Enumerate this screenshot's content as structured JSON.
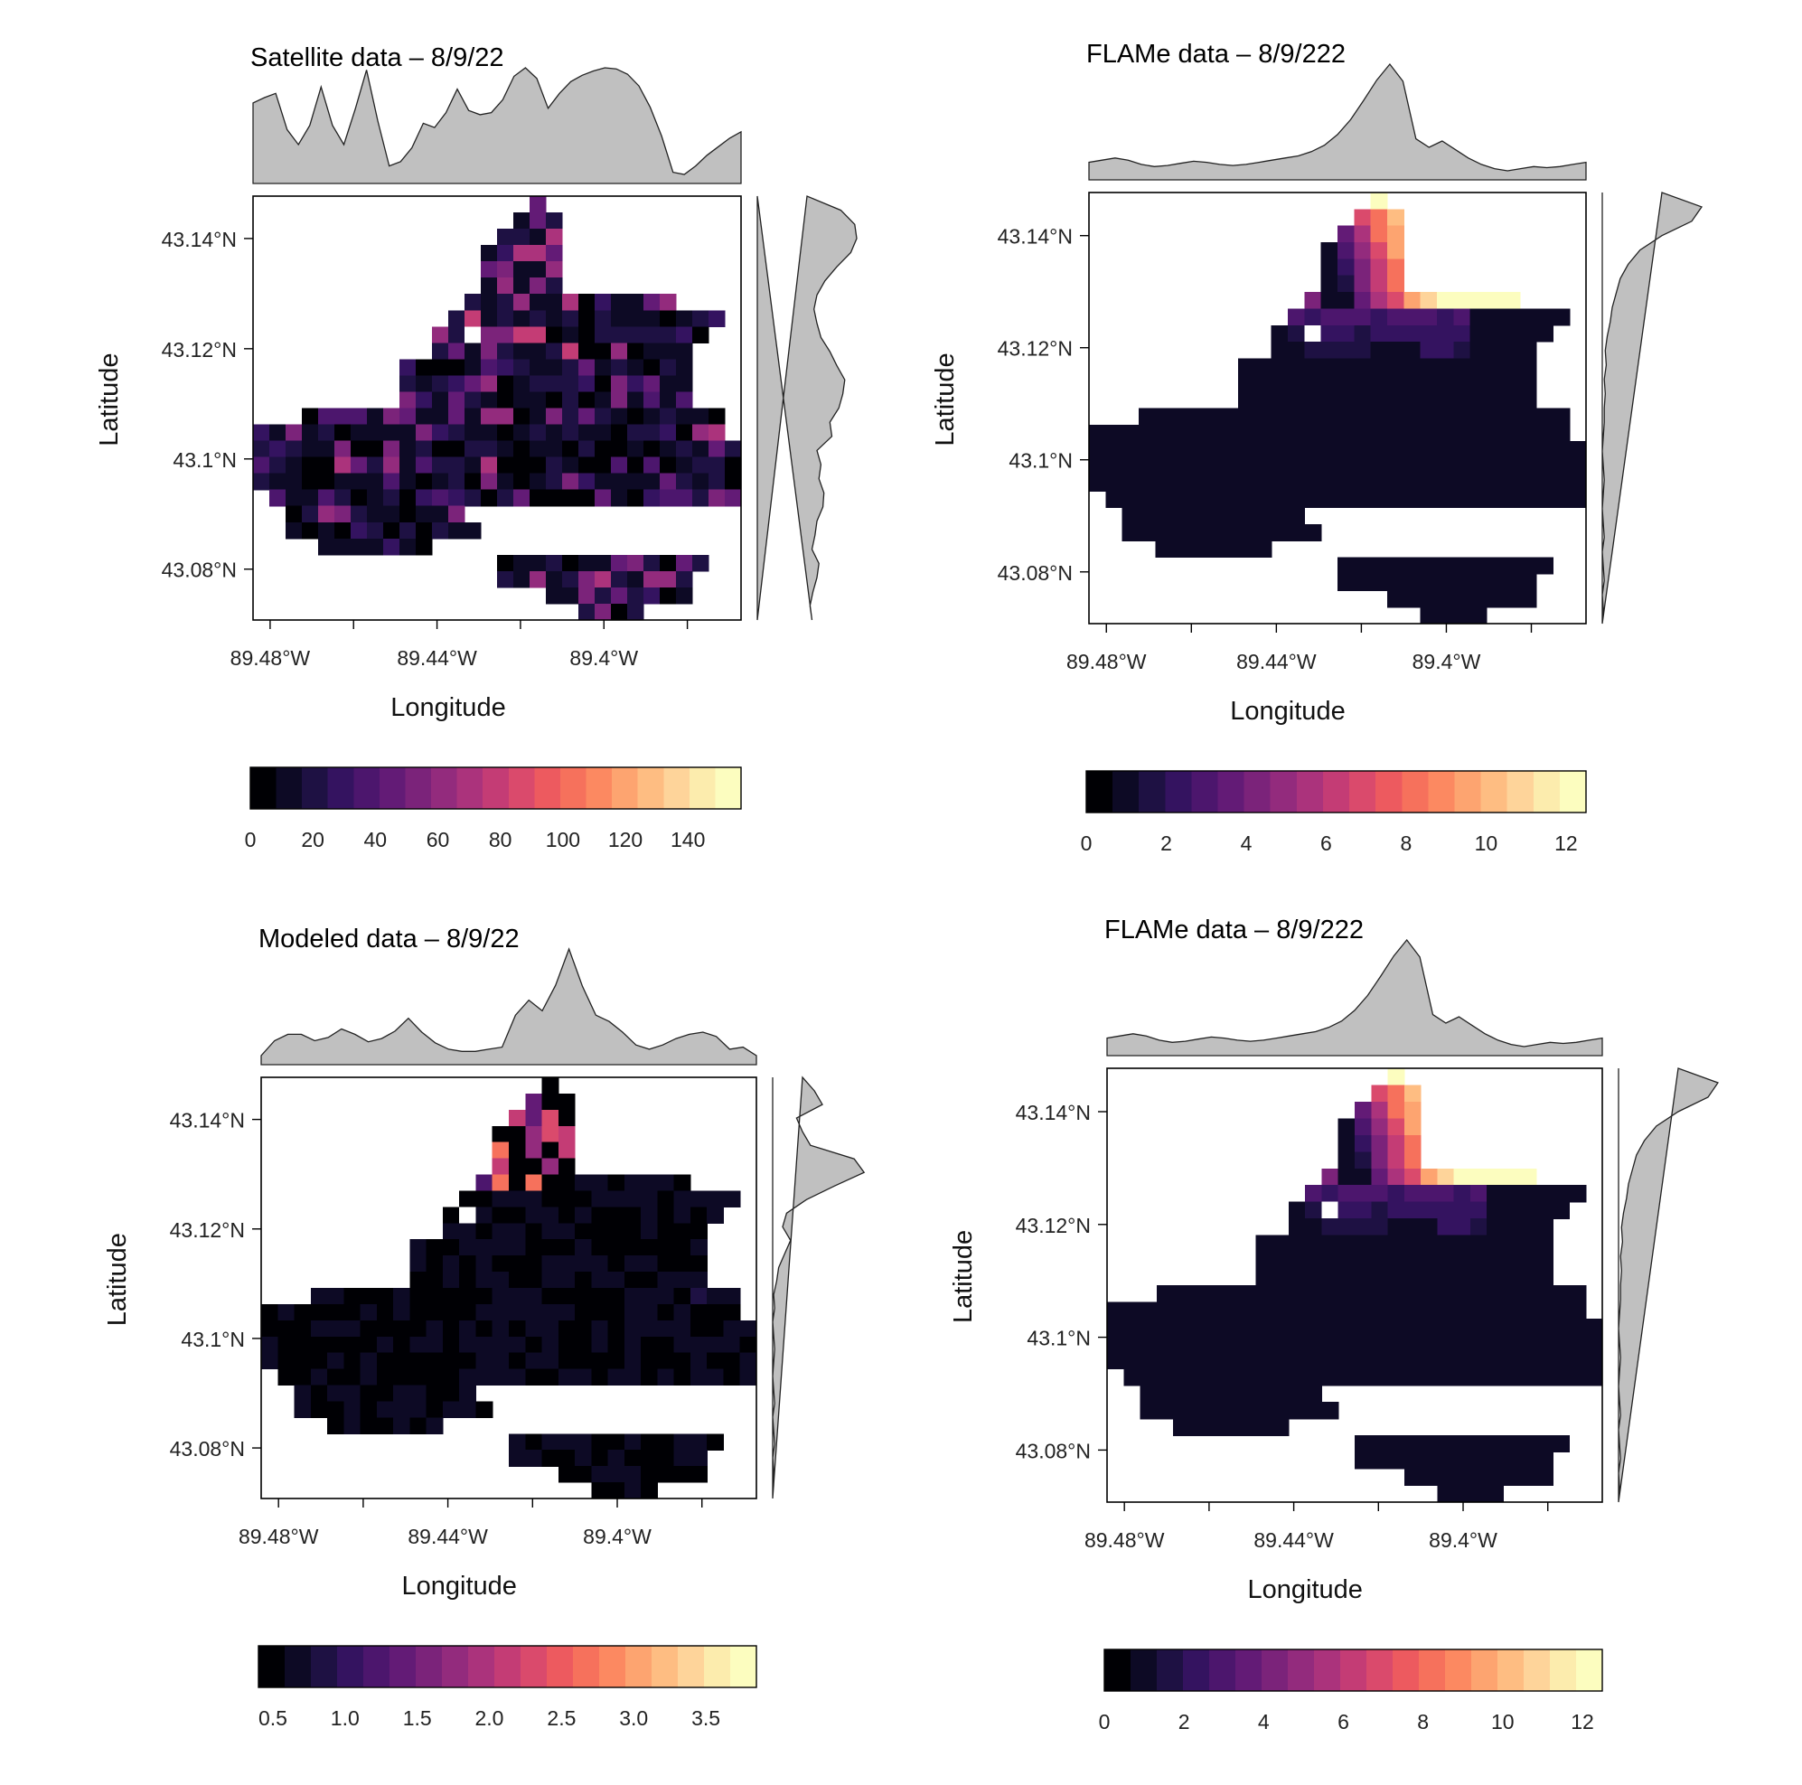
{
  "figure": {
    "colormap": [
      "#000004",
      "#0d0a25",
      "#1e1143",
      "#341360",
      "#4c166d",
      "#631b76",
      "#7b237a",
      "#932b7d",
      "#ab337c",
      "#c43c75",
      "#da4a6c",
      "#ed5a5f",
      "#f6715c",
      "#fc8961",
      "#fda470",
      "#febd82",
      "#fed49a",
      "#fcecad",
      "#fcfdbf"
    ],
    "na_color": "#ffffff",
    "marginal_fill": "#c0c0c0"
  },
  "chart_data": [
    {
      "type": "heatmap",
      "title": "Satellite data – 8/9/22",
      "xlabel": "Longitude",
      "ylabel": "Latitude",
      "x_ticks": [
        "89.48°W",
        "89.44°W",
        "89.4°W"
      ],
      "y_ticks": [
        "43.14°N",
        "43.12°N",
        "43.1°N",
        "43.08°N"
      ],
      "colorbar_ticks": [
        "0",
        "20",
        "40",
        "60",
        "80",
        "100",
        "120",
        "140"
      ],
      "colorbar_range": [
        0,
        157
      ],
      "value_range": [
        0,
        157
      ],
      "pattern": "satellite",
      "na_cells": [
        [
          13,
          8
        ]
      ],
      "top_marginal": [
        0.67,
        0.72,
        0.76,
        0.42,
        0.28,
        0.46,
        0.82,
        0.46,
        0.28,
        0.61,
        0.98,
        0.5,
        0.08,
        0.12,
        0.25,
        0.48,
        0.44,
        0.58,
        0.8,
        0.6,
        0.56,
        0.58,
        0.7,
        0.92,
        1.0,
        0.9,
        0.62,
        0.76,
        0.87,
        0.93,
        0.97,
        1.0,
        0.99,
        0.94,
        0.83,
        0.63,
        0.36,
        0.02,
        0.0,
        0.08,
        0.18,
        0.26,
        0.34,
        0.4
      ],
      "right_marginal": [
        0.55,
        0.53,
        0.56,
        0.6,
        0.62,
        0.55,
        0.58,
        0.6,
        0.66,
        0.67,
        0.62,
        0.64,
        0.6,
        0.75,
        0.73,
        0.82,
        0.86,
        0.88,
        0.8,
        0.73,
        0.64,
        0.6,
        0.57,
        0.6,
        0.68,
        0.8,
        0.94,
        1.0,
        0.98,
        0.84,
        0.5
      ]
    },
    {
      "type": "heatmap",
      "title": "FLAMe data  – 8/9/222",
      "xlabel": "Longitude",
      "ylabel": "Latitude",
      "x_ticks": [
        "89.48°W",
        "89.44°W",
        "89.4°W"
      ],
      "y_ticks": [
        "43.14°N",
        "43.12°N",
        "43.1°N",
        "43.08°N"
      ],
      "colorbar_ticks": [
        "0",
        "2",
        "4",
        "6",
        "8",
        "10",
        "12"
      ],
      "colorbar_range": [
        0,
        12.5
      ],
      "value_range": [
        0,
        12.5
      ],
      "pattern": "flame",
      "na_cells": [
        [
          13,
          8
        ]
      ],
      "top_marginal": [
        0.08,
        0.1,
        0.12,
        0.1,
        0.06,
        0.04,
        0.05,
        0.07,
        0.09,
        0.08,
        0.06,
        0.05,
        0.06,
        0.08,
        0.1,
        0.12,
        0.14,
        0.18,
        0.24,
        0.34,
        0.48,
        0.66,
        0.85,
        1.0,
        0.84,
        0.3,
        0.22,
        0.28,
        0.2,
        0.12,
        0.06,
        0.02,
        0.0,
        0.02,
        0.04,
        0.03,
        0.04,
        0.06,
        0.08
      ],
      "right_marginal": [
        0.0,
        0.01,
        0.0,
        0.02,
        0.01,
        0.0,
        0.02,
        0.01,
        0.0,
        0.01,
        0.02,
        0.01,
        0.0,
        0.01,
        0.02,
        0.02,
        0.03,
        0.02,
        0.04,
        0.03,
        0.05,
        0.08,
        0.1,
        0.14,
        0.18,
        0.26,
        0.38,
        0.6,
        0.9,
        1.0,
        0.6
      ]
    },
    {
      "type": "heatmap",
      "title": "Modeled data – 8/9/22",
      "xlabel": "Longitude",
      "ylabel": "Latitude",
      "x_ticks": [
        "89.48°W",
        "89.44°W",
        "89.4°W"
      ],
      "y_ticks": [
        "43.14°N",
        "43.12°N",
        "43.1°N",
        "43.08°N"
      ],
      "colorbar_ticks": [
        "0.5",
        "1.0",
        "1.5",
        "2.0",
        "2.5",
        "3.0",
        "3.5"
      ],
      "colorbar_range": [
        0.4,
        3.85
      ],
      "value_range": [
        0.4,
        3.85
      ],
      "pattern": "modeled",
      "na_cells": [
        [
          12,
          8
        ]
      ],
      "top_marginal": [
        0.0,
        0.14,
        0.2,
        0.2,
        0.14,
        0.17,
        0.25,
        0.2,
        0.13,
        0.16,
        0.23,
        0.35,
        0.22,
        0.12,
        0.06,
        0.04,
        0.04,
        0.06,
        0.08,
        0.38,
        0.52,
        0.42,
        0.66,
        1.0,
        0.65,
        0.38,
        0.32,
        0.22,
        0.1,
        0.06,
        0.1,
        0.16,
        0.2,
        0.22,
        0.18,
        0.06,
        0.08,
        0.0
      ],
      "right_marginal": [
        0.0,
        0.01,
        0.01,
        0.0,
        0.02,
        0.01,
        0.0,
        0.02,
        0.01,
        0.0,
        0.01,
        0.02,
        0.01,
        0.0,
        0.02,
        0.01,
        0.04,
        0.06,
        0.12,
        0.18,
        0.1,
        0.14,
        0.34,
        0.62,
        0.92,
        0.82,
        0.38,
        0.3,
        0.24,
        0.5,
        0.42,
        0.3
      ]
    },
    {
      "type": "heatmap",
      "title": "FLAMe data  – 8/9/222",
      "xlabel": "Longitude",
      "ylabel": "Latitude",
      "x_ticks": [
        "89.48°W",
        "89.44°W",
        "89.4°W"
      ],
      "y_ticks": [
        "43.14°N",
        "43.12°N",
        "43.1°N",
        "43.08°N"
      ],
      "colorbar_ticks": [
        "0",
        "2",
        "4",
        "6",
        "8",
        "10",
        "12"
      ],
      "colorbar_range": [
        0,
        12.5
      ],
      "value_range": [
        0,
        12.5
      ],
      "pattern": "flame",
      "na_cells": [
        [
          13,
          8
        ]
      ],
      "top_marginal": [
        0.08,
        0.1,
        0.12,
        0.1,
        0.06,
        0.04,
        0.05,
        0.07,
        0.09,
        0.08,
        0.06,
        0.05,
        0.06,
        0.08,
        0.1,
        0.12,
        0.14,
        0.18,
        0.24,
        0.34,
        0.48,
        0.66,
        0.85,
        1.0,
        0.84,
        0.3,
        0.22,
        0.28,
        0.2,
        0.12,
        0.06,
        0.02,
        0.0,
        0.02,
        0.04,
        0.03,
        0.04,
        0.06,
        0.08
      ],
      "right_marginal": [
        0.0,
        0.01,
        0.0,
        0.02,
        0.01,
        0.0,
        0.02,
        0.01,
        0.0,
        0.01,
        0.02,
        0.01,
        0.0,
        0.01,
        0.02,
        0.02,
        0.03,
        0.02,
        0.04,
        0.03,
        0.05,
        0.08,
        0.1,
        0.14,
        0.18,
        0.26,
        0.38,
        0.6,
        0.9,
        1.0,
        0.6
      ]
    }
  ]
}
